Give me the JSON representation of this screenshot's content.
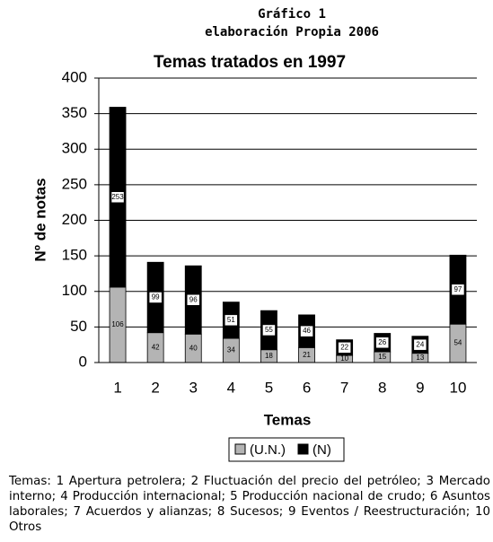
{
  "header": {
    "line1": "Gráfico 1",
    "line2": "elaboración Propia 2006"
  },
  "chart_data": {
    "type": "stacked_bar",
    "title": "Temas tratados en 1997",
    "x_label": "Temas",
    "y_label": "Nº de notas",
    "categories": [
      "1",
      "2",
      "3",
      "4",
      "5",
      "6",
      "7",
      "8",
      "9",
      "10"
    ],
    "series": [
      {
        "name": "(U.N.)",
        "color": "#b4b4b4",
        "values": [
          106,
          42,
          40,
          34,
          18,
          21,
          10,
          15,
          13,
          54
        ]
      },
      {
        "name": "(N)",
        "color": "#000000",
        "values": [
          253,
          99,
          96,
          51,
          55,
          46,
          22,
          26,
          24,
          97
        ]
      }
    ],
    "ylim": [
      0,
      400
    ],
    "yticks": [
      0,
      50,
      100,
      150,
      200,
      250,
      300,
      350,
      400
    ],
    "grid": true,
    "data_labels": true
  },
  "caption": "Temas: 1 Apertura petrolera; 2 Fluctuación del precio del petróleo; 3 Mercado interno; 4 Producción internacional; 5 Producción nacional de crudo; 6 Asuntos laborales; 7 Acuerdos y alianzas; 8 Sucesos; 9 Eventos / Reestructuración; 10 Otros"
}
